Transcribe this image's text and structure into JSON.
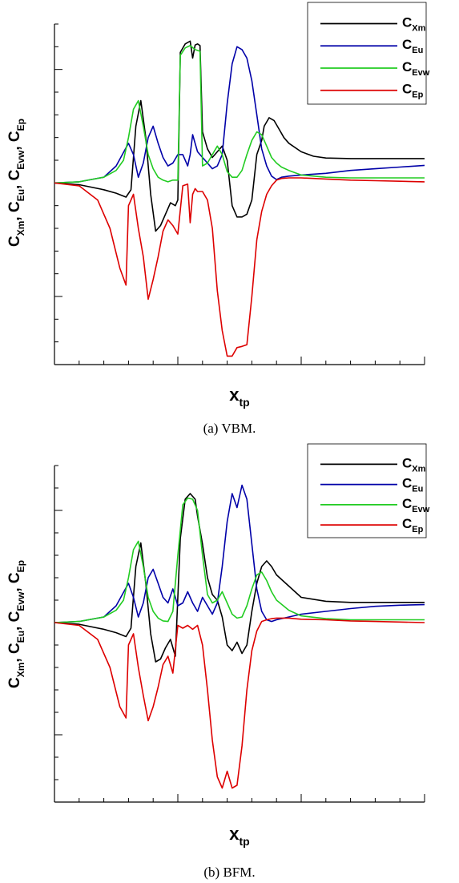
{
  "chart_data": [
    {
      "type": "line",
      "caption": "(a) VBM.",
      "xlabel": {
        "base": "x",
        "sub": "tp"
      },
      "ylabel": [
        {
          "base": "C",
          "sub": "Xm",
          "sep": ", "
        },
        {
          "base": "C",
          "sub": "Eu",
          "sep": ", "
        },
        {
          "base": "C",
          "sub": "Evw",
          "sep": ", "
        },
        {
          "base": "C",
          "sub": "Ep",
          "sep": ""
        }
      ],
      "xlim": [
        0,
        30
      ],
      "ylim": [
        -3.2,
        2.8
      ],
      "x_major_ticks": [
        0,
        10,
        20,
        30
      ],
      "x_minor_step": 2,
      "y_major_ticks": [
        -2,
        0,
        2
      ],
      "y_minor_step": 0.4,
      "grid": false,
      "legend": "top-right",
      "series": [
        {
          "base": "C",
          "sub": "Xm",
          "color": "#000000",
          "x": [
            0,
            2,
            4,
            5,
            5.8,
            6.2,
            6.6,
            7,
            7.4,
            7.8,
            8.2,
            8.6,
            9,
            9.4,
            9.8,
            10,
            10.2,
            10.6,
            11,
            11.2,
            11.4,
            11.6,
            11.8,
            12,
            12.4,
            12.8,
            13.2,
            13.6,
            14,
            14.4,
            14.8,
            15.2,
            15.6,
            16,
            16.4,
            16.8,
            17,
            17.4,
            17.8,
            18.2,
            18.6,
            19,
            20,
            21,
            22,
            24,
            26,
            28,
            30
          ],
          "y": [
            0,
            -0.03,
            -0.12,
            -0.18,
            -0.25,
            -0.12,
            1.0,
            1.45,
            0.8,
            -0.2,
            -0.85,
            -0.75,
            -0.55,
            -0.35,
            -0.4,
            -0.3,
            2.3,
            2.45,
            2.5,
            2.2,
            2.43,
            2.45,
            2.42,
            0.9,
            0.6,
            0.45,
            0.55,
            0.65,
            0.4,
            -0.4,
            -0.6,
            -0.6,
            -0.55,
            -0.3,
            0.5,
            0.75,
            1.0,
            1.15,
            1.1,
            0.95,
            0.8,
            0.7,
            0.55,
            0.47,
            0.44,
            0.43,
            0.43,
            0.43,
            0.43
          ]
        },
        {
          "base": "C",
          "sub": "Eu",
          "color": "#0000a8",
          "x": [
            0,
            2,
            4,
            5,
            6,
            6.4,
            6.8,
            7.2,
            7.6,
            8,
            8.4,
            8.8,
            9.2,
            9.6,
            10,
            10.4,
            10.8,
            11,
            11.2,
            11.6,
            12,
            12.4,
            12.8,
            13.2,
            13.6,
            14,
            14.4,
            14.8,
            15.2,
            15.6,
            16,
            16.4,
            16.8,
            17.2,
            17.6,
            18,
            18.4,
            19,
            20,
            22,
            24,
            26,
            28,
            30
          ],
          "y": [
            0,
            0.02,
            0.1,
            0.3,
            0.7,
            0.5,
            0.1,
            0.35,
            0.8,
            1.0,
            0.7,
            0.45,
            0.3,
            0.35,
            0.5,
            0.5,
            0.3,
            0.5,
            0.85,
            0.55,
            0.45,
            0.35,
            0.25,
            0.3,
            0.5,
            1.4,
            2.1,
            2.4,
            2.35,
            2.2,
            1.8,
            1.2,
            0.6,
            0.3,
            0.12,
            0.06,
            0.1,
            0.12,
            0.14,
            0.17,
            0.22,
            0.25,
            0.28,
            0.31
          ]
        },
        {
          "base": "C",
          "sub": "Evw",
          "color": "#22cc22",
          "x": [
            0,
            2,
            4,
            5,
            5.6,
            6,
            6.4,
            6.8,
            7.2,
            7.6,
            8,
            8.4,
            8.8,
            9.2,
            9.6,
            10,
            10.2,
            10.6,
            11,
            11.4,
            11.8,
            12,
            12.4,
            12.8,
            13.2,
            13.6,
            14,
            14.4,
            14.8,
            15.2,
            15.6,
            16,
            16.4,
            16.8,
            17.2,
            17.6,
            18,
            18.4,
            19,
            20,
            22,
            24,
            26,
            28,
            30
          ],
          "y": [
            0,
            0.02,
            0.1,
            0.22,
            0.4,
            0.8,
            1.3,
            1.45,
            1.0,
            0.5,
            0.25,
            0.1,
            0.05,
            0.02,
            0.05,
            0.05,
            2.25,
            2.38,
            2.42,
            2.35,
            2.32,
            0.3,
            0.35,
            0.5,
            0.65,
            0.5,
            0.2,
            0.1,
            0.1,
            0.22,
            0.5,
            0.75,
            0.9,
            0.85,
            0.65,
            0.45,
            0.35,
            0.28,
            0.22,
            0.14,
            0.1,
            0.09,
            0.09,
            0.09,
            0.09
          ]
        },
        {
          "base": "C",
          "sub": "Ep",
          "color": "#dd0000",
          "x": [
            0,
            2,
            3.5,
            4.5,
            5.3,
            5.8,
            6,
            6.4,
            6.8,
            7.2,
            7.6,
            8,
            8.4,
            8.8,
            9.2,
            9.6,
            10,
            10.4,
            10.8,
            11,
            11.2,
            11.4,
            11.6,
            12,
            12.4,
            12.8,
            13.2,
            13.6,
            14,
            14.4,
            14.8,
            15.2,
            15.6,
            16,
            16.4,
            16.8,
            17.2,
            17.6,
            18,
            18.4,
            19,
            20,
            22,
            24,
            26,
            28,
            30
          ],
          "y": [
            0,
            -0.05,
            -0.3,
            -0.8,
            -1.5,
            -1.8,
            -0.4,
            -0.2,
            -0.8,
            -1.3,
            -2.05,
            -1.7,
            -1.3,
            -0.85,
            -0.65,
            -0.75,
            -0.9,
            -0.05,
            -0.02,
            -0.7,
            -0.2,
            -0.1,
            -0.15,
            -0.15,
            -0.3,
            -0.8,
            -1.9,
            -2.6,
            -3.05,
            -3.05,
            -2.9,
            -2.88,
            -2.85,
            -2.0,
            -1.0,
            -0.5,
            -0.2,
            -0.05,
            0.05,
            0.08,
            0.09,
            0.09,
            0.07,
            0.05,
            0.04,
            0.03,
            0.02
          ]
        }
      ]
    },
    {
      "type": "line",
      "caption": "(b) BFM.",
      "xlabel": {
        "base": "x",
        "sub": "tp"
      },
      "ylabel": [
        {
          "base": "C",
          "sub": "Xm",
          "sep": ", "
        },
        {
          "base": "C",
          "sub": "Eu",
          "sep": ", "
        },
        {
          "base": "C",
          "sub": "Evw",
          "sep": ", "
        },
        {
          "base": "C",
          "sub": "Ep",
          "sep": ""
        }
      ],
      "xlim": [
        0,
        30
      ],
      "ylim": [
        -3.2,
        2.8
      ],
      "x_major_ticks": [
        0,
        10,
        20,
        30
      ],
      "x_minor_step": 2,
      "y_major_ticks": [
        -2,
        0,
        2
      ],
      "y_minor_step": 0.4,
      "grid": false,
      "legend": "top-right",
      "series": [
        {
          "base": "C",
          "sub": "Xm",
          "color": "#000000",
          "x": [
            0,
            2,
            4,
            5,
            5.8,
            6.2,
            6.6,
            7,
            7.4,
            7.8,
            8.2,
            8.6,
            9,
            9.4,
            9.8,
            10.2,
            10.6,
            11,
            11.2,
            11.4,
            11.6,
            12,
            12.4,
            12.8,
            13.2,
            13.6,
            14,
            14.4,
            14.8,
            15.2,
            15.6,
            16,
            16.4,
            16.8,
            17.2,
            17.6,
            18,
            19,
            20,
            22,
            24,
            26,
            28,
            30
          ],
          "y": [
            0,
            -0.03,
            -0.12,
            -0.18,
            -0.25,
            -0.1,
            1.0,
            1.42,
            0.7,
            -0.2,
            -0.7,
            -0.65,
            -0.45,
            -0.3,
            -0.6,
            1.5,
            2.2,
            2.3,
            2.25,
            2.2,
            1.9,
            1.4,
            0.8,
            0.5,
            0.4,
            0.1,
            -0.4,
            -0.5,
            -0.35,
            -0.55,
            -0.4,
            0.2,
            0.7,
            1.0,
            1.1,
            1.0,
            0.85,
            0.65,
            0.45,
            0.38,
            0.36,
            0.36,
            0.36,
            0.36
          ]
        },
        {
          "base": "C",
          "sub": "Eu",
          "color": "#0000a8",
          "x": [
            0,
            2,
            4,
            5,
            6,
            6.4,
            6.8,
            7.2,
            7.6,
            8,
            8.4,
            8.8,
            9.2,
            9.6,
            10,
            10.4,
            10.8,
            11.2,
            11.6,
            12,
            12.4,
            12.8,
            13.2,
            13.6,
            14,
            14.4,
            14.8,
            15.2,
            15.6,
            16,
            16.4,
            16.8,
            17.2,
            17.6,
            18,
            19,
            20,
            22,
            24,
            26,
            28,
            30
          ],
          "y": [
            0,
            0.02,
            0.1,
            0.3,
            0.7,
            0.45,
            0.1,
            0.35,
            0.8,
            0.95,
            0.7,
            0.45,
            0.35,
            0.6,
            0.3,
            0.35,
            0.55,
            0.35,
            0.2,
            0.45,
            0.3,
            0.15,
            0.35,
            1.0,
            1.8,
            2.3,
            2.05,
            2.45,
            2.2,
            1.4,
            0.6,
            0.2,
            0.05,
            0.02,
            0.05,
            0.1,
            0.15,
            0.2,
            0.25,
            0.29,
            0.31,
            0.32
          ]
        },
        {
          "base": "C",
          "sub": "Evw",
          "color": "#22cc22",
          "x": [
            0,
            2,
            4,
            5,
            5.6,
            6,
            6.4,
            6.8,
            7.2,
            7.6,
            8,
            8.4,
            8.8,
            9.2,
            9.6,
            10,
            10.4,
            10.8,
            11.2,
            11.6,
            12,
            12.4,
            12.8,
            13.2,
            13.6,
            14,
            14.4,
            14.8,
            15.2,
            15.6,
            16,
            16.4,
            16.8,
            17.2,
            17.6,
            18,
            19,
            20,
            22,
            24,
            26,
            28,
            30
          ],
          "y": [
            0,
            0.02,
            0.1,
            0.22,
            0.4,
            0.8,
            1.3,
            1.45,
            1.0,
            0.45,
            0.2,
            0.08,
            0.03,
            0.02,
            0.2,
            1.2,
            2.1,
            2.22,
            2.2,
            2.0,
            1.2,
            0.5,
            0.35,
            0.4,
            0.55,
            0.35,
            0.15,
            0.08,
            0.1,
            0.3,
            0.6,
            0.85,
            0.9,
            0.75,
            0.55,
            0.4,
            0.22,
            0.12,
            0.07,
            0.05,
            0.05,
            0.05,
            0.05
          ]
        },
        {
          "base": "C",
          "sub": "Ep",
          "color": "#dd0000",
          "x": [
            0,
            2,
            3.5,
            4.5,
            5.3,
            5.8,
            6,
            6.4,
            6.8,
            7.2,
            7.6,
            8,
            8.4,
            8.8,
            9.2,
            9.6,
            10,
            10.4,
            10.8,
            11.2,
            11.6,
            12,
            12.4,
            12.8,
            13.2,
            13.6,
            14,
            14.4,
            14.8,
            15.2,
            15.6,
            16,
            16.4,
            16.8,
            17.2,
            17.6,
            18,
            19,
            20,
            22,
            24,
            26,
            28,
            30
          ],
          "y": [
            0,
            -0.05,
            -0.3,
            -0.8,
            -1.5,
            -1.7,
            -0.4,
            -0.2,
            -0.8,
            -1.3,
            -1.75,
            -1.5,
            -1.15,
            -0.75,
            -0.6,
            -0.9,
            -0.05,
            -0.1,
            -0.05,
            -0.12,
            -0.05,
            -0.4,
            -1.2,
            -2.1,
            -2.75,
            -2.95,
            -2.65,
            -2.95,
            -2.9,
            -2.2,
            -1.2,
            -0.5,
            -0.15,
            0.02,
            0.05,
            0.07,
            0.08,
            0.08,
            0.06,
            0.05,
            0.03,
            0.02,
            0.01,
            0.0
          ]
        }
      ]
    }
  ]
}
